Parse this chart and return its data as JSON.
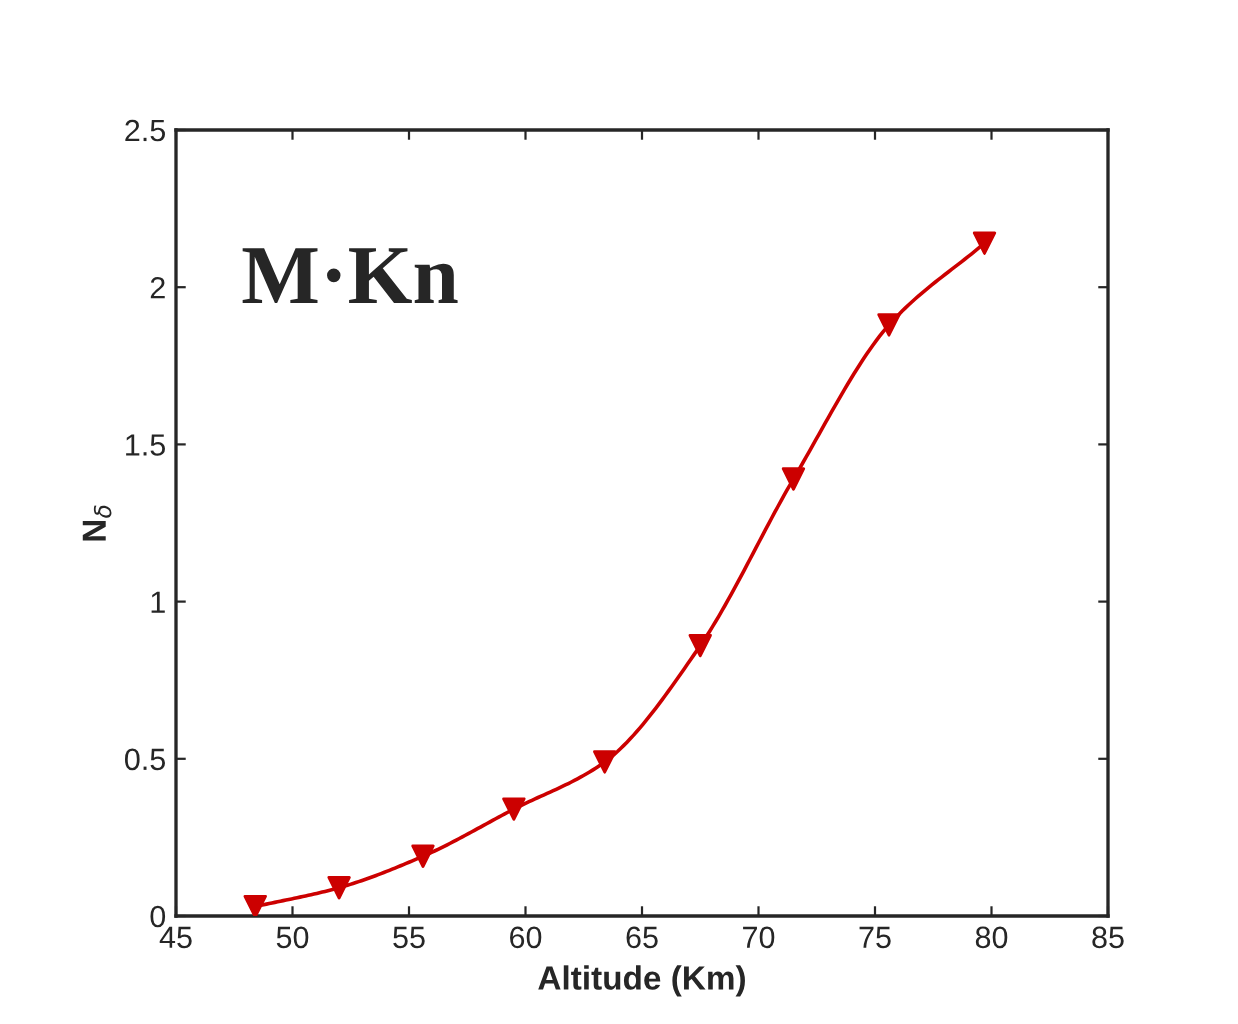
{
  "chart_data": {
    "type": "line",
    "xlabel": "Altitude (Km)",
    "ylabel": "N$_{δ}$",
    "annotations": [
      "M·Kn"
    ],
    "series": [
      {
        "color": "#cc0000",
        "x": [
          48.4,
          52.0,
          55.6,
          59.5,
          63.4,
          67.5,
          71.5,
          75.6,
          79.7
        ],
        "values": [
          0.03,
          0.09,
          0.19,
          0.34,
          0.49,
          0.86,
          1.39,
          1.88,
          2.14
        ]
      }
    ],
    "xlim": [
      45,
      85
    ],
    "xticks": [
      45,
      50,
      55,
      60,
      65,
      70,
      75,
      80,
      85
    ],
    "ylim": [
      0,
      2.5
    ],
    "yticks": [
      0,
      0.5,
      1,
      1.5,
      2,
      2.5
    ],
    "marker": "triangle",
    "grid": false
  }
}
